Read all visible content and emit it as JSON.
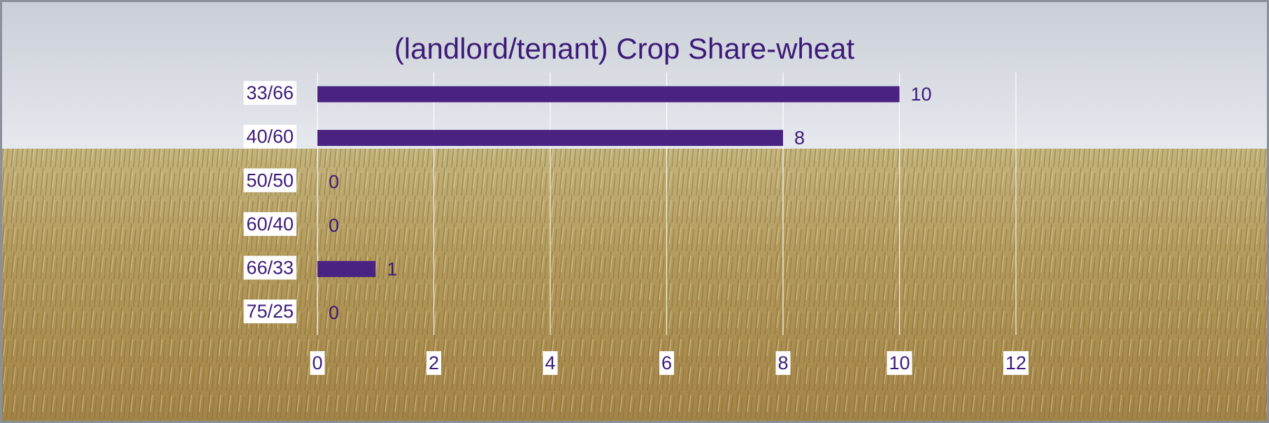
{
  "chart_data": {
    "type": "bar",
    "orientation": "horizontal",
    "title": "(landlord/tenant) Crop Share-wheat",
    "categories": [
      "33/66",
      "40/60",
      "50/50",
      "60/40",
      "66/33",
      "75/25"
    ],
    "values": [
      10,
      8,
      0,
      0,
      1,
      0
    ],
    "color": "#4a2282",
    "xlim": [
      0,
      12
    ],
    "xticks": [
      0,
      2,
      4,
      6,
      8,
      10,
      12
    ],
    "grid": true
  }
}
